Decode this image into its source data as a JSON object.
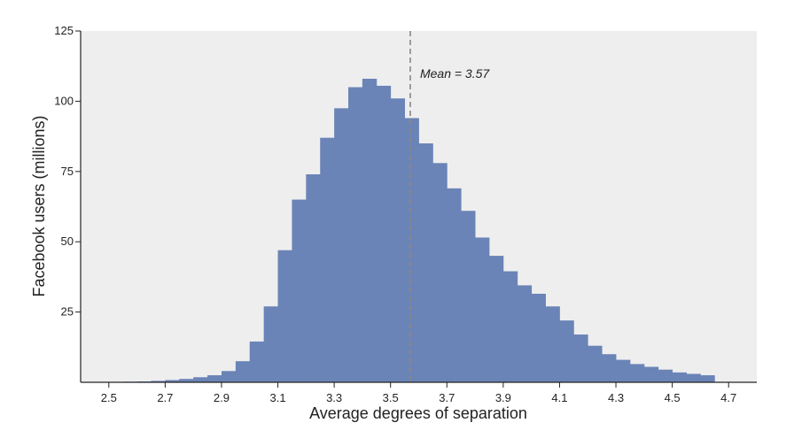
{
  "chart_data": {
    "type": "bar",
    "xlabel": "Average degrees of separation",
    "ylabel": "Facebook users (millions)",
    "xlim": [
      2.4,
      4.8
    ],
    "ylim": [
      0,
      125
    ],
    "x_ticks": [
      2.5,
      2.7,
      2.9,
      3.1,
      3.3,
      3.5,
      3.7,
      3.9,
      4.1,
      4.3,
      4.5,
      4.7
    ],
    "x_tick_labels": [
      "2.5",
      "2.7",
      "2.9",
      "3.1",
      "3.3",
      "3.5",
      "3.7",
      "3.9",
      "4.1",
      "4.3",
      "4.5",
      "4.7"
    ],
    "y_ticks": [
      25,
      50,
      75,
      100,
      125
    ],
    "y_tick_labels": [
      "25",
      "50",
      "75",
      "100",
      "125"
    ],
    "bin_width": 0.05,
    "bin_starts": [
      2.5,
      2.55,
      2.6,
      2.65,
      2.7,
      2.75,
      2.8,
      2.85,
      2.9,
      2.95,
      3.0,
      3.05,
      3.1,
      3.15,
      3.2,
      3.25,
      3.3,
      3.35,
      3.4,
      3.45,
      3.5,
      3.55,
      3.6,
      3.65,
      3.7,
      3.75,
      3.8,
      3.85,
      3.9,
      3.95,
      4.0,
      4.05,
      4.1,
      4.15,
      4.2,
      4.25,
      4.3,
      4.35,
      4.4,
      4.45,
      4.5,
      4.55,
      4.6
    ],
    "values": [
      0.1,
      0.2,
      0.3,
      0.5,
      0.8,
      1.2,
      1.8,
      2.5,
      4,
      7.5,
      14.5,
      27,
      47,
      65,
      74,
      87,
      97.5,
      105,
      108,
      105.5,
      101,
      94,
      85,
      78,
      69,
      61,
      51.5,
      45,
      39.5,
      34.5,
      31.5,
      27,
      22,
      17,
      13,
      10,
      8,
      6.5,
      5.5,
      4.5,
      3.5,
      3,
      2.5
    ],
    "bar_color": "#6b84b7",
    "background_color": "#eeeeee",
    "grid": false,
    "mean": 3.57,
    "mean_label": "Mean = 3.57"
  }
}
